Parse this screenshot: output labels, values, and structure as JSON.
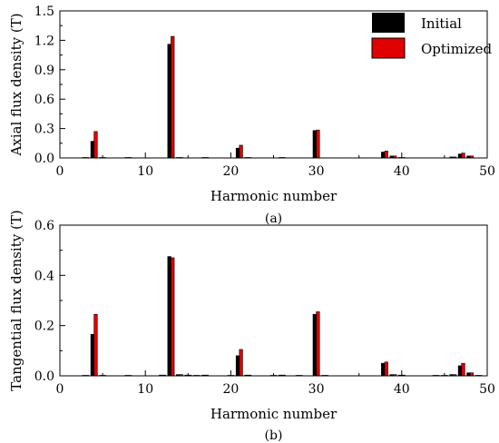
{
  "chart_data": [
    {
      "type": "bar",
      "panel_label": "(a)",
      "xlabel": "Harmonic number",
      "ylabel": "Axial flux density (T)",
      "xlim": [
        0,
        50
      ],
      "ylim": [
        0,
        1.5
      ],
      "x_ticks": [
        "0",
        "10",
        "20",
        "30",
        "40",
        "50"
      ],
      "y_ticks": [
        "0.0",
        "0.3",
        "0.6",
        "0.9",
        "1.2",
        "1.5"
      ],
      "legend": {
        "placement": "top-right",
        "entries": [
          "Initial",
          "Optimized"
        ]
      },
      "categories": [
        1,
        2,
        3,
        4,
        5,
        6,
        7,
        8,
        9,
        10,
        11,
        12,
        13,
        14,
        15,
        16,
        17,
        18,
        19,
        20,
        21,
        22,
        23,
        24,
        25,
        26,
        27,
        28,
        29,
        30,
        31,
        32,
        33,
        34,
        35,
        36,
        37,
        38,
        39,
        40,
        41,
        42,
        43,
        44,
        45,
        46,
        47,
        48,
        49
      ],
      "series": [
        {
          "name": "Initial",
          "color": "#000000",
          "values": [
            0,
            0,
            0.005,
            0.17,
            0.005,
            0,
            0,
            0.005,
            0,
            0,
            0,
            0,
            1.16,
            0.005,
            0,
            0,
            0.005,
            0,
            0,
            0,
            0.1,
            0.005,
            0,
            0,
            0,
            0.005,
            0,
            0,
            0,
            0.28,
            0,
            0,
            0,
            0,
            0,
            0,
            0,
            0.06,
            0.02,
            0.005,
            0,
            0,
            0,
            0,
            0,
            0.01,
            0.04,
            0.02,
            0
          ]
        },
        {
          "name": "Optimized",
          "color": "#e00000",
          "values": [
            0,
            0,
            0.005,
            0.27,
            0.005,
            0,
            0,
            0.005,
            0,
            0,
            0,
            0,
            1.24,
            0.005,
            0,
            0,
            0.005,
            0,
            0,
            0,
            0.13,
            0.005,
            0,
            0,
            0,
            0.005,
            0,
            0,
            0,
            0.285,
            0,
            0,
            0,
            0,
            0,
            0,
            0,
            0.07,
            0.02,
            0.005,
            0,
            0,
            0,
            0,
            0,
            0.01,
            0.05,
            0.02,
            0
          ]
        }
      ]
    },
    {
      "type": "bar",
      "panel_label": "(b)",
      "xlabel": "Harmonic number",
      "ylabel": "Tangential flux density (T)",
      "xlim": [
        0,
        50
      ],
      "ylim": [
        0,
        0.6
      ],
      "x_ticks": [
        "0",
        "10",
        "20",
        "30",
        "40",
        "50"
      ],
      "y_ticks": [
        "0.0",
        "0.2",
        "0.4",
        "0.6"
      ],
      "categories": [
        1,
        2,
        3,
        4,
        5,
        6,
        7,
        8,
        9,
        10,
        11,
        12,
        13,
        14,
        15,
        16,
        17,
        18,
        19,
        20,
        21,
        22,
        23,
        24,
        25,
        26,
        27,
        28,
        29,
        30,
        31,
        32,
        33,
        34,
        35,
        36,
        37,
        38,
        39,
        40,
        41,
        42,
        43,
        44,
        45,
        46,
        47,
        48,
        49
      ],
      "series": [
        {
          "name": "Initial",
          "color": "#000000",
          "values": [
            0,
            0,
            0.002,
            0.165,
            0.002,
            0,
            0,
            0.002,
            0,
            0,
            0,
            0.003,
            0.475,
            0.005,
            0.003,
            0.002,
            0.003,
            0,
            0,
            0.002,
            0.08,
            0.003,
            0,
            0,
            0.002,
            0.003,
            0,
            0.002,
            0,
            0.245,
            0.002,
            0,
            0,
            0,
            0,
            0,
            0,
            0.05,
            0.005,
            0.003,
            0,
            0,
            0,
            0.002,
            0.002,
            0.005,
            0.04,
            0.012,
            0.002
          ]
        },
        {
          "name": "Optimized",
          "color": "#e00000",
          "values": [
            0,
            0,
            0.002,
            0.245,
            0.002,
            0,
            0,
            0.002,
            0,
            0,
            0,
            0.003,
            0.47,
            0.005,
            0.003,
            0.002,
            0.003,
            0,
            0,
            0.002,
            0.105,
            0.003,
            0,
            0,
            0.002,
            0.003,
            0,
            0.002,
            0,
            0.255,
            0.002,
            0,
            0,
            0,
            0,
            0,
            0,
            0.055,
            0.005,
            0.003,
            0,
            0,
            0,
            0.002,
            0.002,
            0.005,
            0.05,
            0.012,
            0.002
          ]
        }
      ]
    }
  ]
}
